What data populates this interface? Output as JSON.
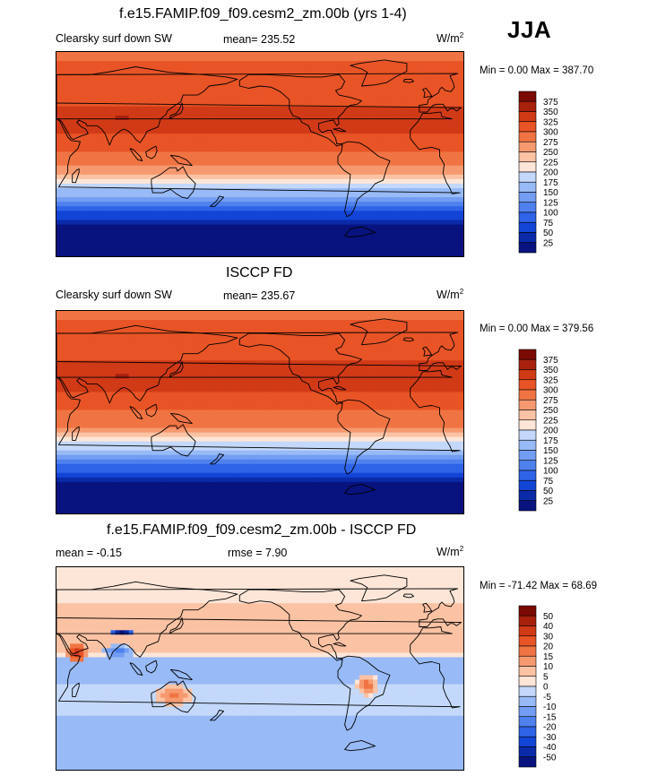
{
  "season": "JJA",
  "panels": [
    {
      "title": "f.e15.FAMIP.f09_f09.cesm2_zm.00b (yrs 1-4)",
      "left_label": "Clearsky surf down SW",
      "center_label": "mean= 235.52",
      "units_base": "W/m",
      "units_sup": "2",
      "minmax": "Min =    0.00 Max = 387.70",
      "colorbar_labels": [
        "375",
        "350",
        "325",
        "300",
        "275",
        "250",
        "225",
        "200",
        "175",
        "150",
        "125",
        "100",
        "75",
        "50",
        "25"
      ]
    },
    {
      "title": "ISCCP FD",
      "left_label": "Clearsky surf down SW",
      "center_label": "mean= 235.67",
      "units_base": "W/m",
      "units_sup": "2",
      "minmax": "Min =    0.00 Max = 379.56",
      "colorbar_labels": [
        "375",
        "350",
        "325",
        "300",
        "275",
        "250",
        "225",
        "200",
        "175",
        "150",
        "125",
        "100",
        "75",
        "50",
        "25"
      ]
    },
    {
      "title": "f.e15.FAMIP.f09_f09.cesm2_zm.00b - ISCCP FD",
      "left_label": "mean =  -0.15",
      "center_label": "rmse =    7.90",
      "units_base": "W/m",
      "units_sup": "2",
      "minmax": "Min = -71.42 Max =  68.69",
      "colorbar_labels": [
        "50",
        "40",
        "30",
        "20",
        "15",
        "10",
        "5",
        "0",
        "-5",
        "-10",
        "-15",
        "-20",
        "-30",
        "-40",
        "-50"
      ]
    }
  ],
  "colors": {
    "abs_scale": [
      "#08137f",
      "#0a2aa8",
      "#1245d6",
      "#2f63e8",
      "#4f81ee",
      "#729df2",
      "#98baf6",
      "#c3d8fa",
      "#fde6d8",
      "#fbc2a4",
      "#f6996f",
      "#f07443",
      "#e85426",
      "#d13a16",
      "#a8210d",
      "#7a0a03"
    ],
    "diff_scale": [
      "#08137f",
      "#0a2aa8",
      "#1245d6",
      "#2f63e8",
      "#4f81ee",
      "#729df2",
      "#98baf6",
      "#c3d8fa",
      "#fde6d8",
      "#fbc2a4",
      "#f6996f",
      "#f07443",
      "#e85426",
      "#d13a16",
      "#a8210d",
      "#7a0a03"
    ]
  },
  "chart_data": [
    {
      "type": "heatmap",
      "title": "f.e15.FAMIP.f09_f09.cesm2_zm.00b (yrs 1-4)",
      "variable": "Clearsky surf down SW",
      "units": "W/m2",
      "season": "JJA",
      "mean": 235.52,
      "min": 0.0,
      "max": 387.7,
      "contour_levels": [
        25,
        50,
        75,
        100,
        125,
        150,
        175,
        200,
        225,
        250,
        275,
        300,
        325,
        350,
        375
      ]
    },
    {
      "type": "heatmap",
      "title": "ISCCP FD",
      "variable": "Clearsky surf down SW",
      "units": "W/m2",
      "season": "JJA",
      "mean": 235.67,
      "min": 0.0,
      "max": 379.56,
      "contour_levels": [
        25,
        50,
        75,
        100,
        125,
        150,
        175,
        200,
        225,
        250,
        275,
        300,
        325,
        350,
        375
      ]
    },
    {
      "type": "heatmap",
      "title": "f.e15.FAMIP.f09_f09.cesm2_zm.00b - ISCCP FD",
      "units": "W/m2",
      "season": "JJA",
      "mean": -0.15,
      "rmse": 7.9,
      "min": -71.42,
      "max": 68.69,
      "contour_levels": [
        -50,
        -40,
        -30,
        -20,
        -15,
        -10,
        -5,
        0,
        5,
        10,
        15,
        20,
        30,
        40,
        50
      ]
    }
  ]
}
